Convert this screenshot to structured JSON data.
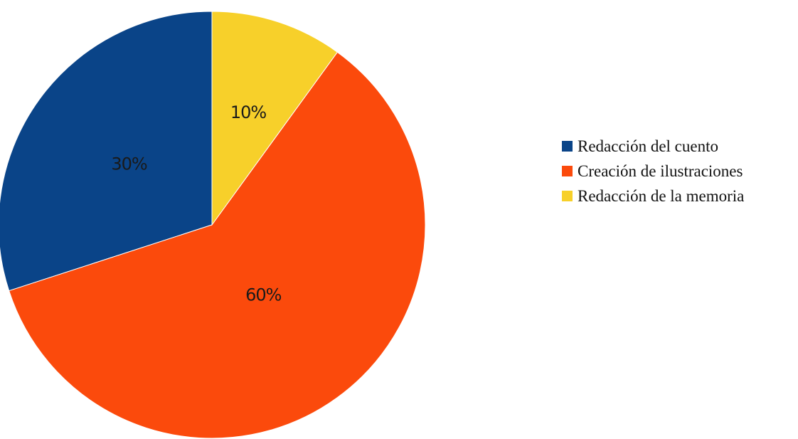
{
  "colors": {
    "background": "#ffffff",
    "label_text": "#1a1a1a"
  },
  "chart_data": {
    "type": "pie",
    "title": "",
    "categories": [
      "Redacción del cuento",
      "Creación de ilustraciones",
      "Redacción de la memoria"
    ],
    "values": [
      30,
      60,
      10
    ],
    "labels": [
      "30%",
      "60%",
      "10%"
    ],
    "colors": [
      "#0a4488",
      "#fb4a0c",
      "#f7d02a"
    ],
    "start": "12 o'clock",
    "direction": "counterclockwise",
    "legend_position": "right"
  },
  "legend": {
    "items": [
      {
        "label": "Redacción del cuento",
        "color": "#0a4488"
      },
      {
        "label": "Creación de ilustraciones",
        "color": "#fb4a0c"
      },
      {
        "label": "Redacción de la memoria",
        "color": "#f7d02a"
      }
    ]
  }
}
